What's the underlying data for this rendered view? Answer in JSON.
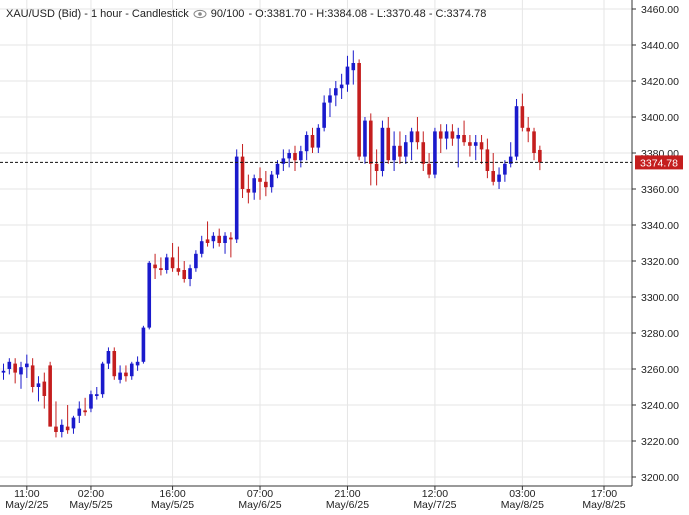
{
  "header": {
    "title": "XAU/USD (Bid) - 1 hour - Candlestick",
    "visible_count": "90/100",
    "ohlc": "- O:3381.70 - H:3384.08 - L:3370.48 - C:3374.78",
    "eye_icon": "eye-icon"
  },
  "colors": {
    "up": "#1a1acc",
    "down": "#c41e1e",
    "grid": "#e6e6e6",
    "axis": "#333333",
    "price_tag_bg": "#c41e1e",
    "price_tag_text": "#ffffff"
  },
  "chart_data": {
    "type": "candlestick",
    "title": "XAU/USD (Bid) - 1 hour - Candlestick",
    "interval": "1 hour",
    "ylim": [
      3195,
      3465
    ],
    "y_ticks": [
      3200,
      3220,
      3240,
      3260,
      3280,
      3300,
      3320,
      3340,
      3360,
      3380,
      3400,
      3420,
      3440,
      3460
    ],
    "y_tick_labels": [
      "3200.00",
      "3220.00",
      "3240.00",
      "3260.00",
      "3280.00",
      "3300.00",
      "3320.00",
      "3340.00",
      "3360.00",
      "3380.00",
      "3400.00",
      "3420.00",
      "3440.00",
      "3460.00"
    ],
    "x_ticks": [
      {
        "index": 4,
        "time": "11:00",
        "date": "May/2/25"
      },
      {
        "index": 15,
        "time": "02:00",
        "date": "May/5/25"
      },
      {
        "index": 29,
        "time": "16:00",
        "date": "May/5/25"
      },
      {
        "index": 44,
        "time": "07:00",
        "date": "May/6/25"
      },
      {
        "index": 59,
        "time": "21:00",
        "date": "May/6/25"
      },
      {
        "index": 74,
        "time": "12:00",
        "date": "May/7/25"
      },
      {
        "index": 89,
        "time": "03:00",
        "date": "May/8/25"
      },
      {
        "index": 103,
        "time": "17:00",
        "date": "May/8/25"
      }
    ],
    "last_price": 3374.78,
    "last_price_label": "3374.78",
    "grid": true,
    "candles": [
      {
        "o": 3258,
        "h": 3263,
        "l": 3254,
        "c": 3259
      },
      {
        "o": 3260,
        "h": 3266,
        "l": 3257,
        "c": 3264
      },
      {
        "o": 3263,
        "h": 3266,
        "l": 3252,
        "c": 3258
      },
      {
        "o": 3257,
        "h": 3264,
        "l": 3249,
        "c": 3261
      },
      {
        "o": 3261,
        "h": 3268,
        "l": 3255,
        "c": 3263
      },
      {
        "o": 3262,
        "h": 3266,
        "l": 3247,
        "c": 3250
      },
      {
        "o": 3250,
        "h": 3256,
        "l": 3242,
        "c": 3252
      },
      {
        "o": 3253,
        "h": 3258,
        "l": 3238,
        "c": 3245
      },
      {
        "o": 3262,
        "h": 3264,
        "l": 3228,
        "c": 3228
      },
      {
        "o": 3228,
        "h": 3242,
        "l": 3222,
        "c": 3225
      },
      {
        "o": 3225,
        "h": 3232,
        "l": 3222,
        "c": 3229
      },
      {
        "o": 3228,
        "h": 3240,
        "l": 3224,
        "c": 3226
      },
      {
        "o": 3227,
        "h": 3234,
        "l": 3224,
        "c": 3233
      },
      {
        "o": 3234,
        "h": 3242,
        "l": 3230,
        "c": 3238
      },
      {
        "o": 3237,
        "h": 3244,
        "l": 3234,
        "c": 3236
      },
      {
        "o": 3238,
        "h": 3248,
        "l": 3236,
        "c": 3246
      },
      {
        "o": 3245,
        "h": 3250,
        "l": 3243,
        "c": 3246
      },
      {
        "o": 3246,
        "h": 3264,
        "l": 3244,
        "c": 3263
      },
      {
        "o": 3263,
        "h": 3272,
        "l": 3260,
        "c": 3270
      },
      {
        "o": 3270,
        "h": 3272,
        "l": 3254,
        "c": 3256
      },
      {
        "o": 3254,
        "h": 3262,
        "l": 3252,
        "c": 3258
      },
      {
        "o": 3258,
        "h": 3262,
        "l": 3253,
        "c": 3256
      },
      {
        "o": 3256,
        "h": 3264,
        "l": 3254,
        "c": 3263
      },
      {
        "o": 3262,
        "h": 3267,
        "l": 3259,
        "c": 3264
      },
      {
        "o": 3264,
        "h": 3284,
        "l": 3263,
        "c": 3283
      },
      {
        "o": 3283,
        "h": 3320,
        "l": 3282,
        "c": 3319
      },
      {
        "o": 3318,
        "h": 3324,
        "l": 3310,
        "c": 3316
      },
      {
        "o": 3316,
        "h": 3322,
        "l": 3312,
        "c": 3315
      },
      {
        "o": 3315,
        "h": 3324,
        "l": 3313,
        "c": 3322
      },
      {
        "o": 3322,
        "h": 3330,
        "l": 3314,
        "c": 3316
      },
      {
        "o": 3316,
        "h": 3328,
        "l": 3312,
        "c": 3314
      },
      {
        "o": 3315,
        "h": 3320,
        "l": 3308,
        "c": 3310
      },
      {
        "o": 3310,
        "h": 3318,
        "l": 3306,
        "c": 3316
      },
      {
        "o": 3316,
        "h": 3326,
        "l": 3314,
        "c": 3324
      },
      {
        "o": 3324,
        "h": 3334,
        "l": 3322,
        "c": 3331
      },
      {
        "o": 3332,
        "h": 3342,
        "l": 3328,
        "c": 3330
      },
      {
        "o": 3331,
        "h": 3336,
        "l": 3327,
        "c": 3334
      },
      {
        "o": 3334,
        "h": 3338,
        "l": 3328,
        "c": 3330
      },
      {
        "o": 3330,
        "h": 3336,
        "l": 3324,
        "c": 3334
      },
      {
        "o": 3333,
        "h": 3336,
        "l": 3322,
        "c": 3332
      },
      {
        "o": 3332,
        "h": 3382,
        "l": 3330,
        "c": 3378
      },
      {
        "o": 3378,
        "h": 3385,
        "l": 3355,
        "c": 3360
      },
      {
        "o": 3360,
        "h": 3368,
        "l": 3352,
        "c": 3358
      },
      {
        "o": 3358,
        "h": 3368,
        "l": 3354,
        "c": 3366
      },
      {
        "o": 3366,
        "h": 3372,
        "l": 3354,
        "c": 3364
      },
      {
        "o": 3364,
        "h": 3370,
        "l": 3356,
        "c": 3361
      },
      {
        "o": 3361,
        "h": 3370,
        "l": 3358,
        "c": 3368
      },
      {
        "o": 3368,
        "h": 3376,
        "l": 3366,
        "c": 3374
      },
      {
        "o": 3374,
        "h": 3382,
        "l": 3370,
        "c": 3377
      },
      {
        "o": 3377,
        "h": 3382,
        "l": 3372,
        "c": 3380
      },
      {
        "o": 3380,
        "h": 3384,
        "l": 3370,
        "c": 3376
      },
      {
        "o": 3376,
        "h": 3384,
        "l": 3372,
        "c": 3381
      },
      {
        "o": 3381,
        "h": 3392,
        "l": 3376,
        "c": 3390
      },
      {
        "o": 3390,
        "h": 3394,
        "l": 3380,
        "c": 3383
      },
      {
        "o": 3383,
        "h": 3396,
        "l": 3380,
        "c": 3394
      },
      {
        "o": 3394,
        "h": 3412,
        "l": 3392,
        "c": 3408
      },
      {
        "o": 3408,
        "h": 3416,
        "l": 3400,
        "c": 3412
      },
      {
        "o": 3412,
        "h": 3420,
        "l": 3406,
        "c": 3416
      },
      {
        "o": 3416,
        "h": 3424,
        "l": 3410,
        "c": 3418
      },
      {
        "o": 3418,
        "h": 3434,
        "l": 3414,
        "c": 3428
      },
      {
        "o": 3426,
        "h": 3437,
        "l": 3418,
        "c": 3430
      },
      {
        "o": 3430,
        "h": 3432,
        "l": 3376,
        "c": 3378
      },
      {
        "o": 3378,
        "h": 3400,
        "l": 3374,
        "c": 3398
      },
      {
        "o": 3398,
        "h": 3402,
        "l": 3362,
        "c": 3374
      },
      {
        "o": 3374,
        "h": 3382,
        "l": 3362,
        "c": 3370
      },
      {
        "o": 3370,
        "h": 3398,
        "l": 3367,
        "c": 3394
      },
      {
        "o": 3394,
        "h": 3400,
        "l": 3374,
        "c": 3376
      },
      {
        "o": 3376,
        "h": 3392,
        "l": 3370,
        "c": 3384
      },
      {
        "o": 3384,
        "h": 3392,
        "l": 3374,
        "c": 3378
      },
      {
        "o": 3378,
        "h": 3390,
        "l": 3374,
        "c": 3386
      },
      {
        "o": 3386,
        "h": 3394,
        "l": 3376,
        "c": 3392
      },
      {
        "o": 3392,
        "h": 3400,
        "l": 3382,
        "c": 3386
      },
      {
        "o": 3386,
        "h": 3392,
        "l": 3370,
        "c": 3374
      },
      {
        "o": 3374,
        "h": 3380,
        "l": 3366,
        "c": 3368
      },
      {
        "o": 3368,
        "h": 3394,
        "l": 3366,
        "c": 3392
      },
      {
        "o": 3392,
        "h": 3396,
        "l": 3380,
        "c": 3388
      },
      {
        "o": 3388,
        "h": 3396,
        "l": 3382,
        "c": 3392
      },
      {
        "o": 3392,
        "h": 3396,
        "l": 3384,
        "c": 3388
      },
      {
        "o": 3388,
        "h": 3394,
        "l": 3372,
        "c": 3390
      },
      {
        "o": 3390,
        "h": 3398,
        "l": 3384,
        "c": 3386
      },
      {
        "o": 3386,
        "h": 3390,
        "l": 3378,
        "c": 3384
      },
      {
        "o": 3384,
        "h": 3390,
        "l": 3376,
        "c": 3386
      },
      {
        "o": 3386,
        "h": 3390,
        "l": 3374,
        "c": 3382
      },
      {
        "o": 3382,
        "h": 3388,
        "l": 3366,
        "c": 3370
      },
      {
        "o": 3370,
        "h": 3380,
        "l": 3362,
        "c": 3364
      },
      {
        "o": 3364,
        "h": 3372,
        "l": 3360,
        "c": 3368
      },
      {
        "o": 3368,
        "h": 3376,
        "l": 3364,
        "c": 3374
      },
      {
        "o": 3374,
        "h": 3386,
        "l": 3372,
        "c": 3378
      },
      {
        "o": 3378,
        "h": 3410,
        "l": 3376,
        "c": 3406
      },
      {
        "o": 3406,
        "h": 3413,
        "l": 3392,
        "c": 3394
      },
      {
        "o": 3394,
        "h": 3400,
        "l": 3386,
        "c": 3392
      },
      {
        "o": 3392,
        "h": 3394,
        "l": 3376,
        "c": 3380
      },
      {
        "o": 3381.7,
        "h": 3384.08,
        "l": 3370.48,
        "c": 3374.78
      }
    ]
  }
}
